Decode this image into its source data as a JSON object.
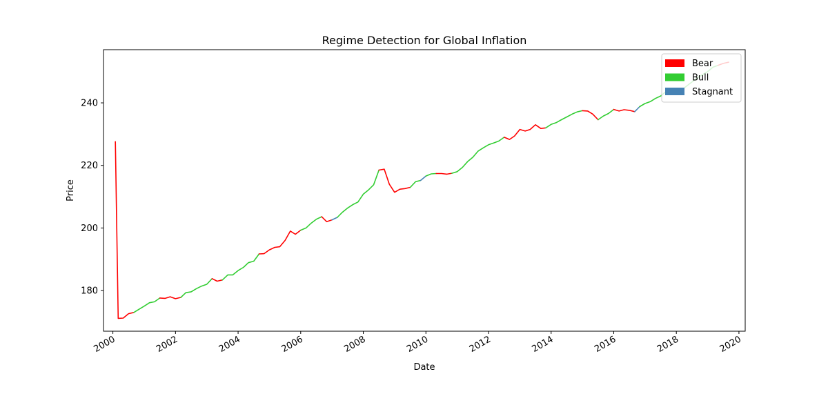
{
  "chart_data": {
    "type": "line",
    "title": "Regime Detection for Global Inflation",
    "xlabel": "Date",
    "ylabel": "Price",
    "xlim": [
      1999.7,
      2020.2
    ],
    "ylim": [
      167,
      257
    ],
    "xticks": [
      2000,
      2002,
      2004,
      2006,
      2008,
      2010,
      2012,
      2014,
      2016,
      2018,
      2020
    ],
    "xtick_labels": [
      "2000",
      "2002",
      "2004",
      "2006",
      "2008",
      "2010",
      "2012",
      "2014",
      "2016",
      "2018",
      "2020"
    ],
    "yticks": [
      180,
      200,
      220,
      240
    ],
    "ytick_labels": [
      "180",
      "200",
      "220",
      "240"
    ],
    "grid": false,
    "legend": {
      "placement": "top-right",
      "entries": [
        {
          "name": "Bear",
          "color": "#ff0000"
        },
        {
          "name": "Bull",
          "color": "#32cd32"
        },
        {
          "name": "Stagnant",
          "color": "#4682b4"
        }
      ]
    },
    "colors": {
      "Bear": "#ff0000",
      "Bull": "#32cd32",
      "Stagnant": "#4682b4"
    },
    "segments": [
      {
        "regime": "Bear",
        "points": [
          [
            2000.08,
            227.6
          ],
          [
            2000.17,
            171.1
          ],
          [
            2000.33,
            171.2
          ],
          [
            2000.5,
            172.6
          ],
          [
            2000.67,
            173.0
          ]
        ]
      },
      {
        "regime": "Bull",
        "points": [
          [
            2000.67,
            173.0
          ],
          [
            2000.83,
            174.0
          ],
          [
            2001.0,
            175.0
          ],
          [
            2001.17,
            176.1
          ],
          [
            2001.33,
            176.4
          ],
          [
            2001.5,
            177.6
          ]
        ]
      },
      {
        "regime": "Bear",
        "points": [
          [
            2001.5,
            177.6
          ],
          [
            2001.67,
            177.5
          ],
          [
            2001.83,
            178.0
          ],
          [
            2002.0,
            177.4
          ],
          [
            2002.17,
            177.8
          ]
        ]
      },
      {
        "regime": "Bull",
        "points": [
          [
            2002.17,
            177.8
          ],
          [
            2002.33,
            179.3
          ],
          [
            2002.5,
            179.6
          ],
          [
            2002.67,
            180.6
          ],
          [
            2002.83,
            181.4
          ],
          [
            2003.0,
            182.0
          ],
          [
            2003.17,
            183.8
          ]
        ]
      },
      {
        "regime": "Bear",
        "points": [
          [
            2003.17,
            183.8
          ],
          [
            2003.33,
            183.0
          ],
          [
            2003.5,
            183.4
          ]
        ]
      },
      {
        "regime": "Bull",
        "points": [
          [
            2003.5,
            183.4
          ],
          [
            2003.67,
            185.0
          ],
          [
            2003.83,
            185.0
          ],
          [
            2004.0,
            186.4
          ],
          [
            2004.17,
            187.4
          ],
          [
            2004.33,
            188.9
          ],
          [
            2004.5,
            189.4
          ],
          [
            2004.67,
            191.7
          ]
        ]
      },
      {
        "regime": "Bear",
        "points": [
          [
            2004.67,
            191.7
          ],
          [
            2004.83,
            191.8
          ],
          [
            2005.0,
            193.0
          ],
          [
            2005.17,
            193.8
          ],
          [
            2005.33,
            194.0
          ],
          [
            2005.5,
            196.0
          ],
          [
            2005.67,
            199.0
          ],
          [
            2005.83,
            198.0
          ],
          [
            2006.0,
            199.3
          ]
        ]
      },
      {
        "regime": "Bull",
        "points": [
          [
            2006.0,
            199.3
          ],
          [
            2006.17,
            200.0
          ],
          [
            2006.33,
            201.5
          ],
          [
            2006.5,
            202.8
          ],
          [
            2006.67,
            203.6
          ]
        ]
      },
      {
        "regime": "Bear",
        "points": [
          [
            2006.67,
            203.6
          ],
          [
            2006.83,
            202.0
          ],
          [
            2007.0,
            202.6
          ]
        ]
      },
      {
        "regime": "Stagnant",
        "points": [
          [
            2007.0,
            202.6
          ],
          [
            2007.17,
            203.4
          ]
        ]
      },
      {
        "regime": "Bull",
        "points": [
          [
            2007.17,
            203.4
          ],
          [
            2007.33,
            205.0
          ],
          [
            2007.5,
            206.4
          ],
          [
            2007.67,
            207.5
          ],
          [
            2007.83,
            208.3
          ],
          [
            2008.0,
            210.8
          ],
          [
            2008.17,
            212.2
          ],
          [
            2008.33,
            213.8
          ],
          [
            2008.5,
            218.5
          ]
        ]
      },
      {
        "regime": "Bear",
        "points": [
          [
            2008.5,
            218.5
          ],
          [
            2008.67,
            218.8
          ],
          [
            2008.83,
            214.0
          ],
          [
            2009.0,
            211.4
          ],
          [
            2009.17,
            212.4
          ],
          [
            2009.33,
            212.6
          ],
          [
            2009.5,
            213.0
          ]
        ]
      },
      {
        "regime": "Bull",
        "points": [
          [
            2009.5,
            213.0
          ],
          [
            2009.67,
            214.8
          ],
          [
            2009.83,
            215.2
          ]
        ]
      },
      {
        "regime": "Stagnant",
        "points": [
          [
            2009.83,
            215.2
          ],
          [
            2010.0,
            216.6
          ]
        ]
      },
      {
        "regime": "Bull",
        "points": [
          [
            2010.0,
            216.6
          ],
          [
            2010.17,
            217.3
          ],
          [
            2010.33,
            217.4
          ]
        ]
      },
      {
        "regime": "Bear",
        "points": [
          [
            2010.33,
            217.4
          ],
          [
            2010.5,
            217.4
          ],
          [
            2010.67,
            217.2
          ],
          [
            2010.83,
            217.5
          ]
        ]
      },
      {
        "regime": "Bull",
        "points": [
          [
            2010.83,
            217.5
          ],
          [
            2011.0,
            218.0
          ],
          [
            2011.17,
            219.4
          ],
          [
            2011.33,
            221.2
          ],
          [
            2011.5,
            222.6
          ],
          [
            2011.67,
            224.6
          ],
          [
            2011.83,
            225.6
          ],
          [
            2012.0,
            226.6
          ],
          [
            2012.17,
            227.2
          ],
          [
            2012.33,
            227.8
          ],
          [
            2012.5,
            229.0
          ]
        ]
      },
      {
        "regime": "Bear",
        "points": [
          [
            2012.5,
            229.0
          ],
          [
            2012.67,
            228.3
          ],
          [
            2012.83,
            229.4
          ],
          [
            2013.0,
            231.5
          ],
          [
            2013.17,
            231.0
          ],
          [
            2013.33,
            231.5
          ],
          [
            2013.5,
            233.0
          ],
          [
            2013.67,
            231.8
          ],
          [
            2013.83,
            232.0
          ]
        ]
      },
      {
        "regime": "Bull",
        "points": [
          [
            2013.83,
            232.0
          ],
          [
            2014.0,
            233.1
          ],
          [
            2014.17,
            233.7
          ],
          [
            2014.33,
            234.6
          ],
          [
            2014.5,
            235.5
          ],
          [
            2014.67,
            236.4
          ],
          [
            2014.83,
            237.1
          ],
          [
            2015.0,
            237.5
          ]
        ]
      },
      {
        "regime": "Bear",
        "points": [
          [
            2015.0,
            237.5
          ],
          [
            2015.17,
            237.4
          ],
          [
            2015.33,
            236.4
          ],
          [
            2015.5,
            234.6
          ]
        ]
      },
      {
        "regime": "Bull",
        "points": [
          [
            2015.5,
            234.6
          ],
          [
            2015.67,
            235.8
          ],
          [
            2015.83,
            236.6
          ],
          [
            2016.0,
            237.9
          ]
        ]
      },
      {
        "regime": "Bear",
        "points": [
          [
            2016.0,
            237.9
          ],
          [
            2016.17,
            237.4
          ],
          [
            2016.33,
            237.8
          ],
          [
            2016.5,
            237.6
          ],
          [
            2016.67,
            237.2
          ]
        ]
      },
      {
        "regime": "Stagnant",
        "points": [
          [
            2016.67,
            237.2
          ],
          [
            2016.83,
            238.8
          ]
        ]
      },
      {
        "regime": "Bull",
        "points": [
          [
            2016.83,
            238.8
          ],
          [
            2017.0,
            239.8
          ],
          [
            2017.17,
            240.4
          ],
          [
            2017.33,
            241.4
          ],
          [
            2017.5,
            242.2
          ],
          [
            2017.67,
            243.6
          ],
          [
            2017.83,
            244.0
          ]
        ]
      },
      {
        "regime": "Bear",
        "points": [
          [
            2017.83,
            244.0
          ],
          [
            2018.0,
            243.8
          ],
          [
            2018.17,
            244.1
          ]
        ]
      },
      {
        "regime": "Bull",
        "points": [
          [
            2018.17,
            244.1
          ],
          [
            2018.33,
            245.4
          ],
          [
            2018.5,
            246.7
          ],
          [
            2018.67,
            248.0
          ],
          [
            2018.83,
            249.0
          ],
          [
            2019.0,
            250.0
          ],
          [
            2019.17,
            251.4
          ],
          [
            2019.33,
            252.0
          ]
        ]
      },
      {
        "regime": "Bear",
        "points": [
          [
            2019.33,
            252.0
          ],
          [
            2019.5,
            252.6
          ],
          [
            2019.67,
            253.0
          ]
        ]
      }
    ]
  }
}
